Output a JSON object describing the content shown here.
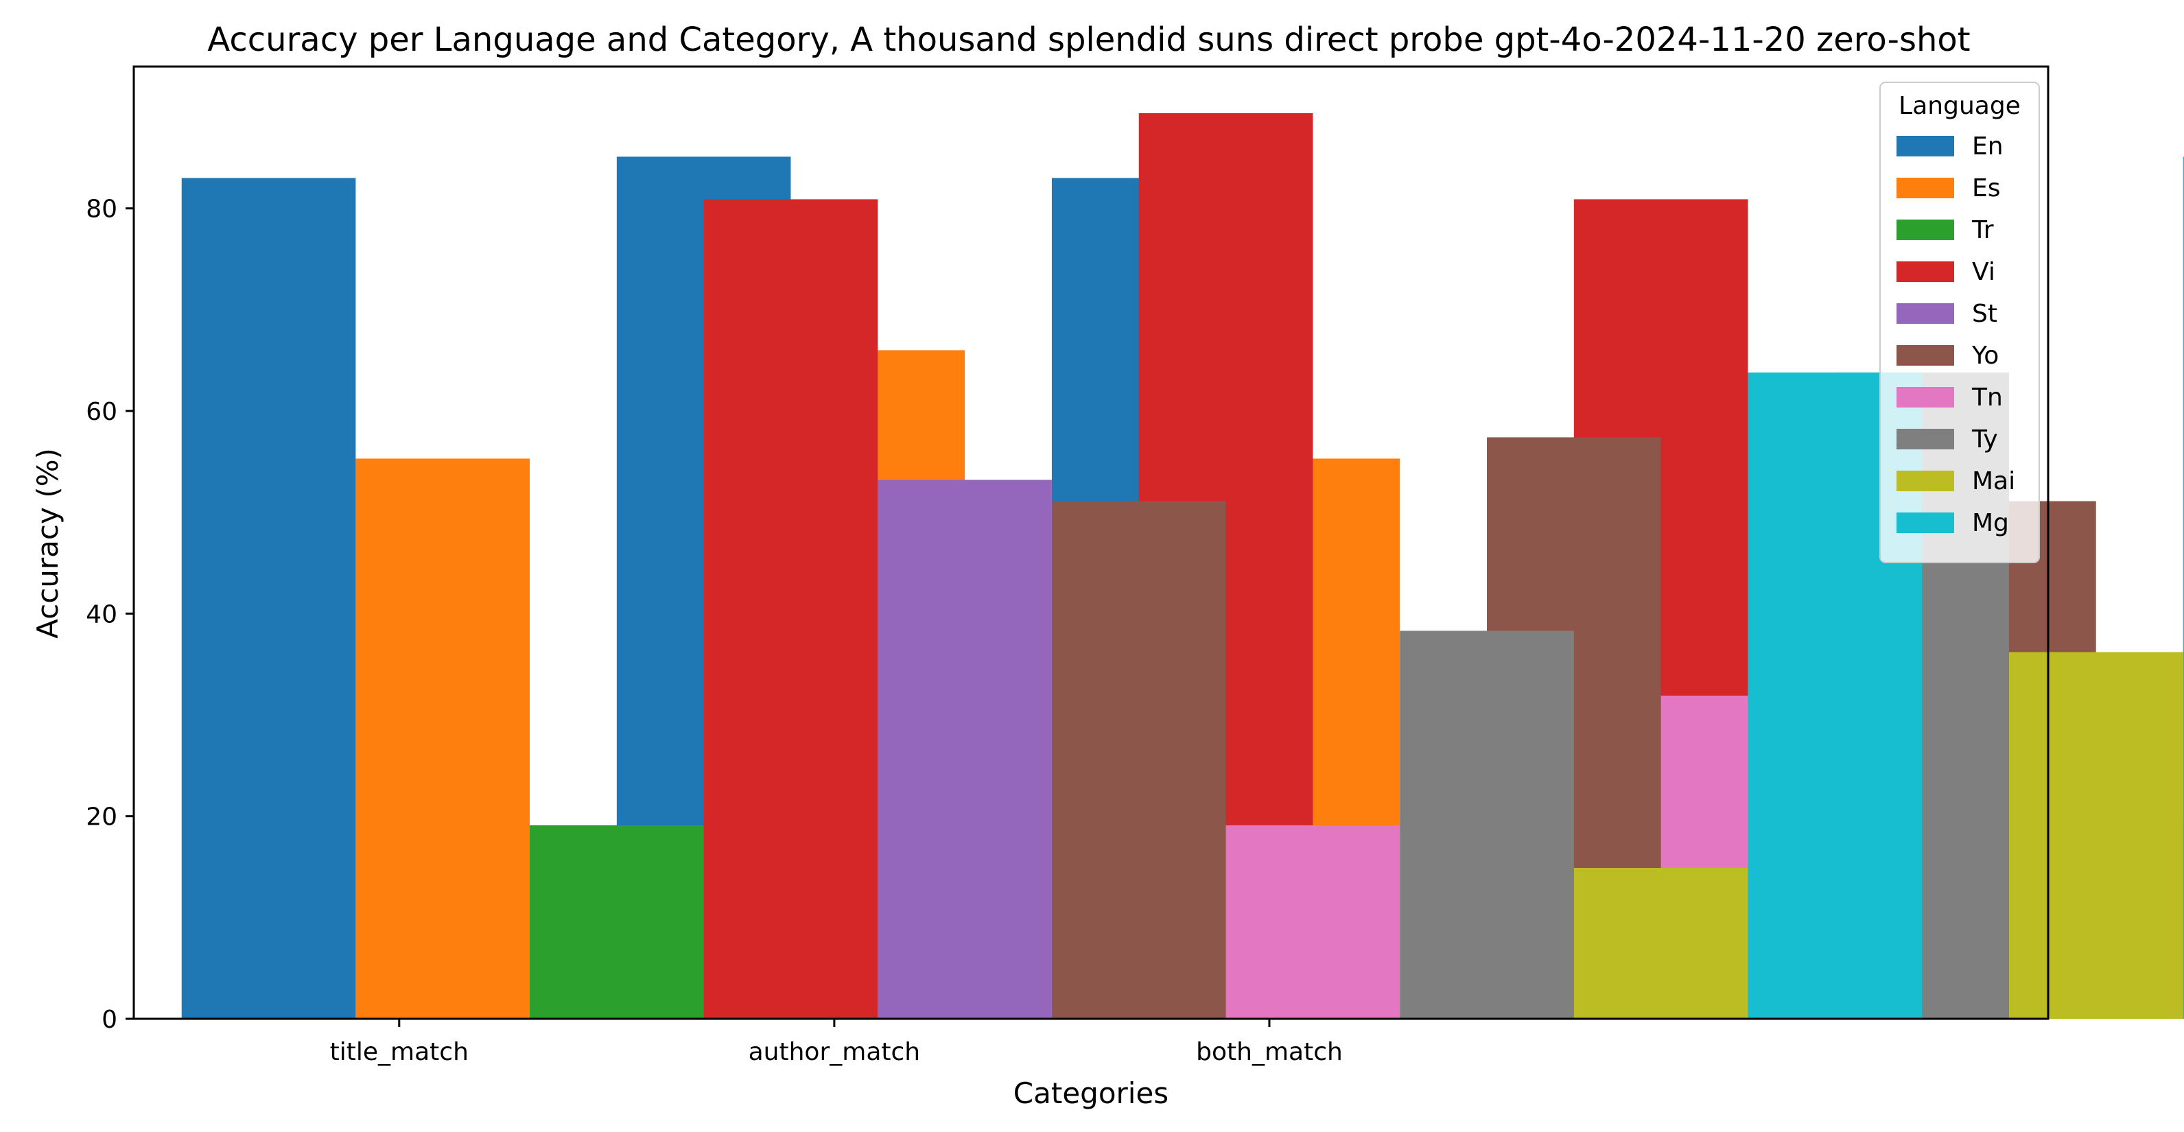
{
  "chart_data": {
    "type": "bar",
    "title": "Accuracy per Language and Category, A thousand splendid suns direct probe gpt-4o-2024-11-20 zero-shot",
    "xlabel": "Categories",
    "ylabel": "Accuracy (%)",
    "categories": [
      "title_match",
      "author_match",
      "both_match"
    ],
    "ylim": [
      0,
      94
    ],
    "yticks": [
      0,
      20,
      40,
      60,
      80
    ],
    "legend": {
      "title": "Language",
      "placement": "top-right"
    },
    "grid": false,
    "series": [
      {
        "name": "En",
        "color": "#1f77b4",
        "values": [
          83.0,
          85.1,
          83.0
        ]
      },
      {
        "name": "Es",
        "color": "#ff7f0e",
        "values": [
          55.3,
          66.0,
          55.3
        ]
      },
      {
        "name": "Tr",
        "color": "#2ca02c",
        "values": [
          19.1,
          0.0,
          0.0
        ]
      },
      {
        "name": "Vi",
        "color": "#d62728",
        "values": [
          80.9,
          89.4,
          80.9
        ]
      },
      {
        "name": "St",
        "color": "#9467bd",
        "values": [
          53.2,
          0.0,
          0.0
        ]
      },
      {
        "name": "Yo",
        "color": "#8c564b",
        "values": [
          51.1,
          57.4,
          51.1
        ]
      },
      {
        "name": "Tn",
        "color": "#e377c2",
        "values": [
          19.1,
          31.9,
          19.1
        ]
      },
      {
        "name": "Ty",
        "color": "#7f7f7f",
        "values": [
          38.3,
          63.8,
          38.3
        ]
      },
      {
        "name": "Mai",
        "color": "#bcbd22",
        "values": [
          14.9,
          36.2,
          14.9
        ]
      },
      {
        "name": "Mg",
        "color": "#17becf",
        "values": [
          63.8,
          85.1,
          63.8
        ]
      }
    ]
  }
}
